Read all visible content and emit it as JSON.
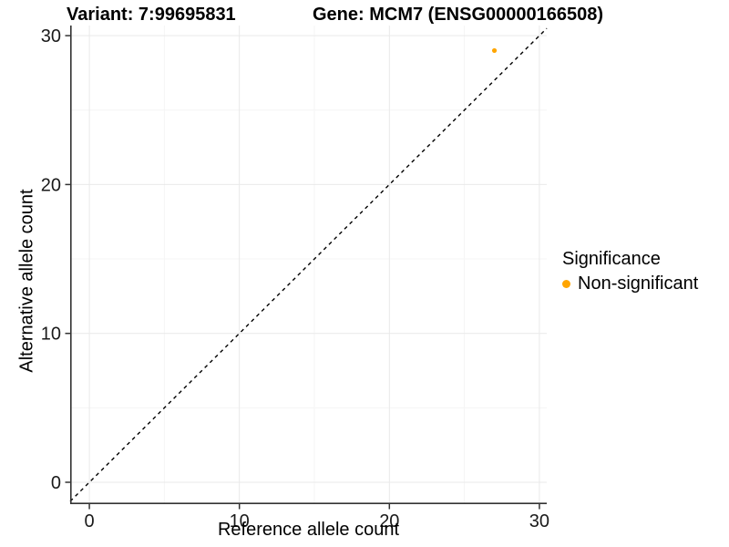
{
  "chart_data": {
    "type": "scatter",
    "titles": {
      "left": "Variant: 7:99695831",
      "right": "Gene: MCM7 (ENSG00000166508)"
    },
    "xlabel": "Reference allele count",
    "ylabel": "Alternative allele count",
    "xlim": [
      -1.28,
      30.49
    ],
    "ylim": [
      -1.47,
      30.68
    ],
    "x_ticks": [
      0,
      10,
      20,
      30
    ],
    "y_ticks": [
      0,
      10,
      20,
      30
    ],
    "x_minor_ticks": [
      5,
      15,
      25
    ],
    "y_minor_ticks": [
      5,
      15,
      25
    ],
    "grid": true,
    "identity_line": true,
    "series": [
      {
        "name": "Non-significant",
        "color": "#FFA500",
        "points": [
          {
            "x": 27,
            "y": 29
          }
        ]
      }
    ],
    "legend": {
      "position": "right",
      "title": "Significance",
      "items": [
        {
          "label": "Non-significant",
          "color": "#FFA500"
        }
      ]
    },
    "colors": {
      "grid_major": "#E9E9E9",
      "grid_minor": "#F5F5F5",
      "axis_line": "#333333",
      "identity_line": "#000000",
      "tick_label": "#1A1A1A"
    }
  }
}
